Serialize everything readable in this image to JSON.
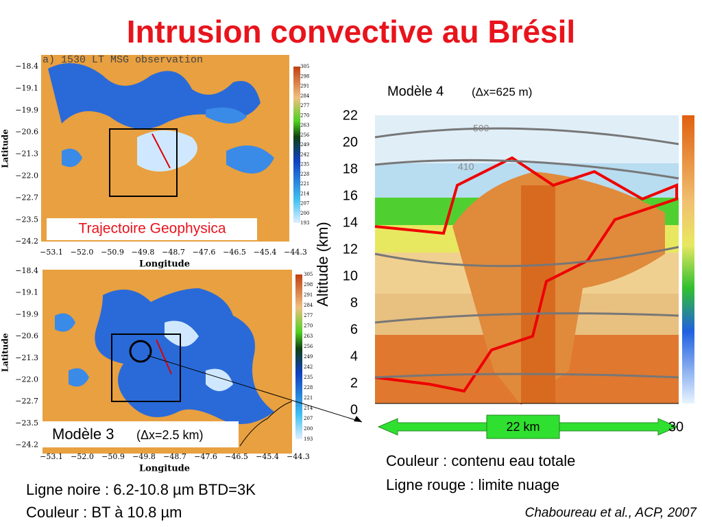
{
  "title": "Intrusion convective au Brésil",
  "map_top": {
    "header": "a) 1530 LT MSG observation",
    "lat_labels": [
      "−18.4",
      "−19.1",
      "−19.9",
      "−20.6",
      "−21.3",
      "−22.0",
      "−22.7",
      "−23.5",
      "−24.2"
    ],
    "lon_labels": [
      "−53.1",
      "−52.0",
      "−50.9",
      "−49.8",
      "−48.7",
      "−47.6",
      "−46.5",
      "−45.4",
      "−44.3"
    ],
    "x_label": "Longitude",
    "y_label": "Latitude",
    "colorbar_labels": [
      "305",
      "298",
      "291",
      "284",
      "277",
      "270",
      "263",
      "256",
      "249",
      "242",
      "235",
      "228",
      "221",
      "214",
      "207",
      "200",
      "193"
    ],
    "caption": "Trajectoire Geophysica"
  },
  "map_bottom": {
    "lat_labels": [
      "−18.4",
      "−19.1",
      "−19.9",
      "−20.6",
      "−21.3",
      "−22.0",
      "−22.7",
      "−23.5",
      "−24.2"
    ],
    "lon_labels": [
      "−53.1",
      "−52.0",
      "−50.9",
      "−49.8",
      "−48.7",
      "−47.6",
      "−46.5",
      "−45.4",
      "−44.3"
    ],
    "x_label": "Longitude",
    "y_label": "Latitude",
    "colorbar_labels": [
      "305",
      "298",
      "291",
      "284",
      "277",
      "270",
      "263",
      "256",
      "249",
      "242",
      "235",
      "228",
      "221",
      "214",
      "207",
      "200",
      "193"
    ],
    "caption_main": "Modèle 3",
    "caption_res": "(Δx=2.5 km)"
  },
  "section": {
    "title_main": "Modèle 4",
    "title_res": "(Δx=625 m)",
    "y_label": "Altitude (km)",
    "y_labels": [
      "22",
      "20",
      "18",
      "16",
      "14",
      "12",
      "10",
      "8",
      "6",
      "4",
      "2",
      "0"
    ],
    "x_labels": [
      "30"
    ],
    "contour_labels": [
      "500",
      "410"
    ],
    "scale_label": "22 km"
  },
  "notes_right": [
    "Couleur : contenu eau totale",
    "Ligne rouge : limite nuage"
  ],
  "notes_left": [
    "Ligne noire : 6.2-10.8 µm BTD=3K",
    "Couleur : BT à 10.8 µm"
  ],
  "citation": "Chaboureau et al., ACP, 2007"
}
